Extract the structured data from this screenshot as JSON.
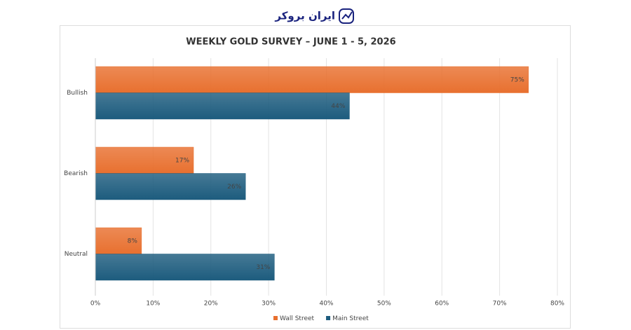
{
  "brand": "ایران بروکر",
  "chart_data": {
    "type": "bar",
    "orientation": "horizontal",
    "title": "WEEKLY GOLD SURVEY – JUNE 1 - 5, 2026",
    "categories": [
      "Bullish",
      "Bearish",
      "Neutral"
    ],
    "series": [
      {
        "name": "Wall Street",
        "color": "#e8702f",
        "values": [
          75,
          17,
          8
        ],
        "value_labels": [
          "75%",
          "17%",
          "8%"
        ]
      },
      {
        "name": "Main Street",
        "color": "#1d5c7e",
        "values": [
          44,
          26,
          31
        ],
        "value_labels": [
          "44%",
          "26%",
          "31%"
        ]
      }
    ],
    "xlim": [
      0,
      80
    ],
    "xticks": [
      {
        "value": 0,
        "label": "0%"
      },
      {
        "value": 10,
        "label": "10%"
      },
      {
        "value": 20,
        "label": "20%"
      },
      {
        "value": 30,
        "label": "30%"
      },
      {
        "value": 40,
        "label": "40%"
      },
      {
        "value": 50,
        "label": "50%"
      },
      {
        "value": 60,
        "label": "60%"
      },
      {
        "value": 70,
        "label": "70%"
      },
      {
        "value": 80,
        "label": "80%"
      }
    ],
    "grid": true,
    "legend": "bottom"
  }
}
